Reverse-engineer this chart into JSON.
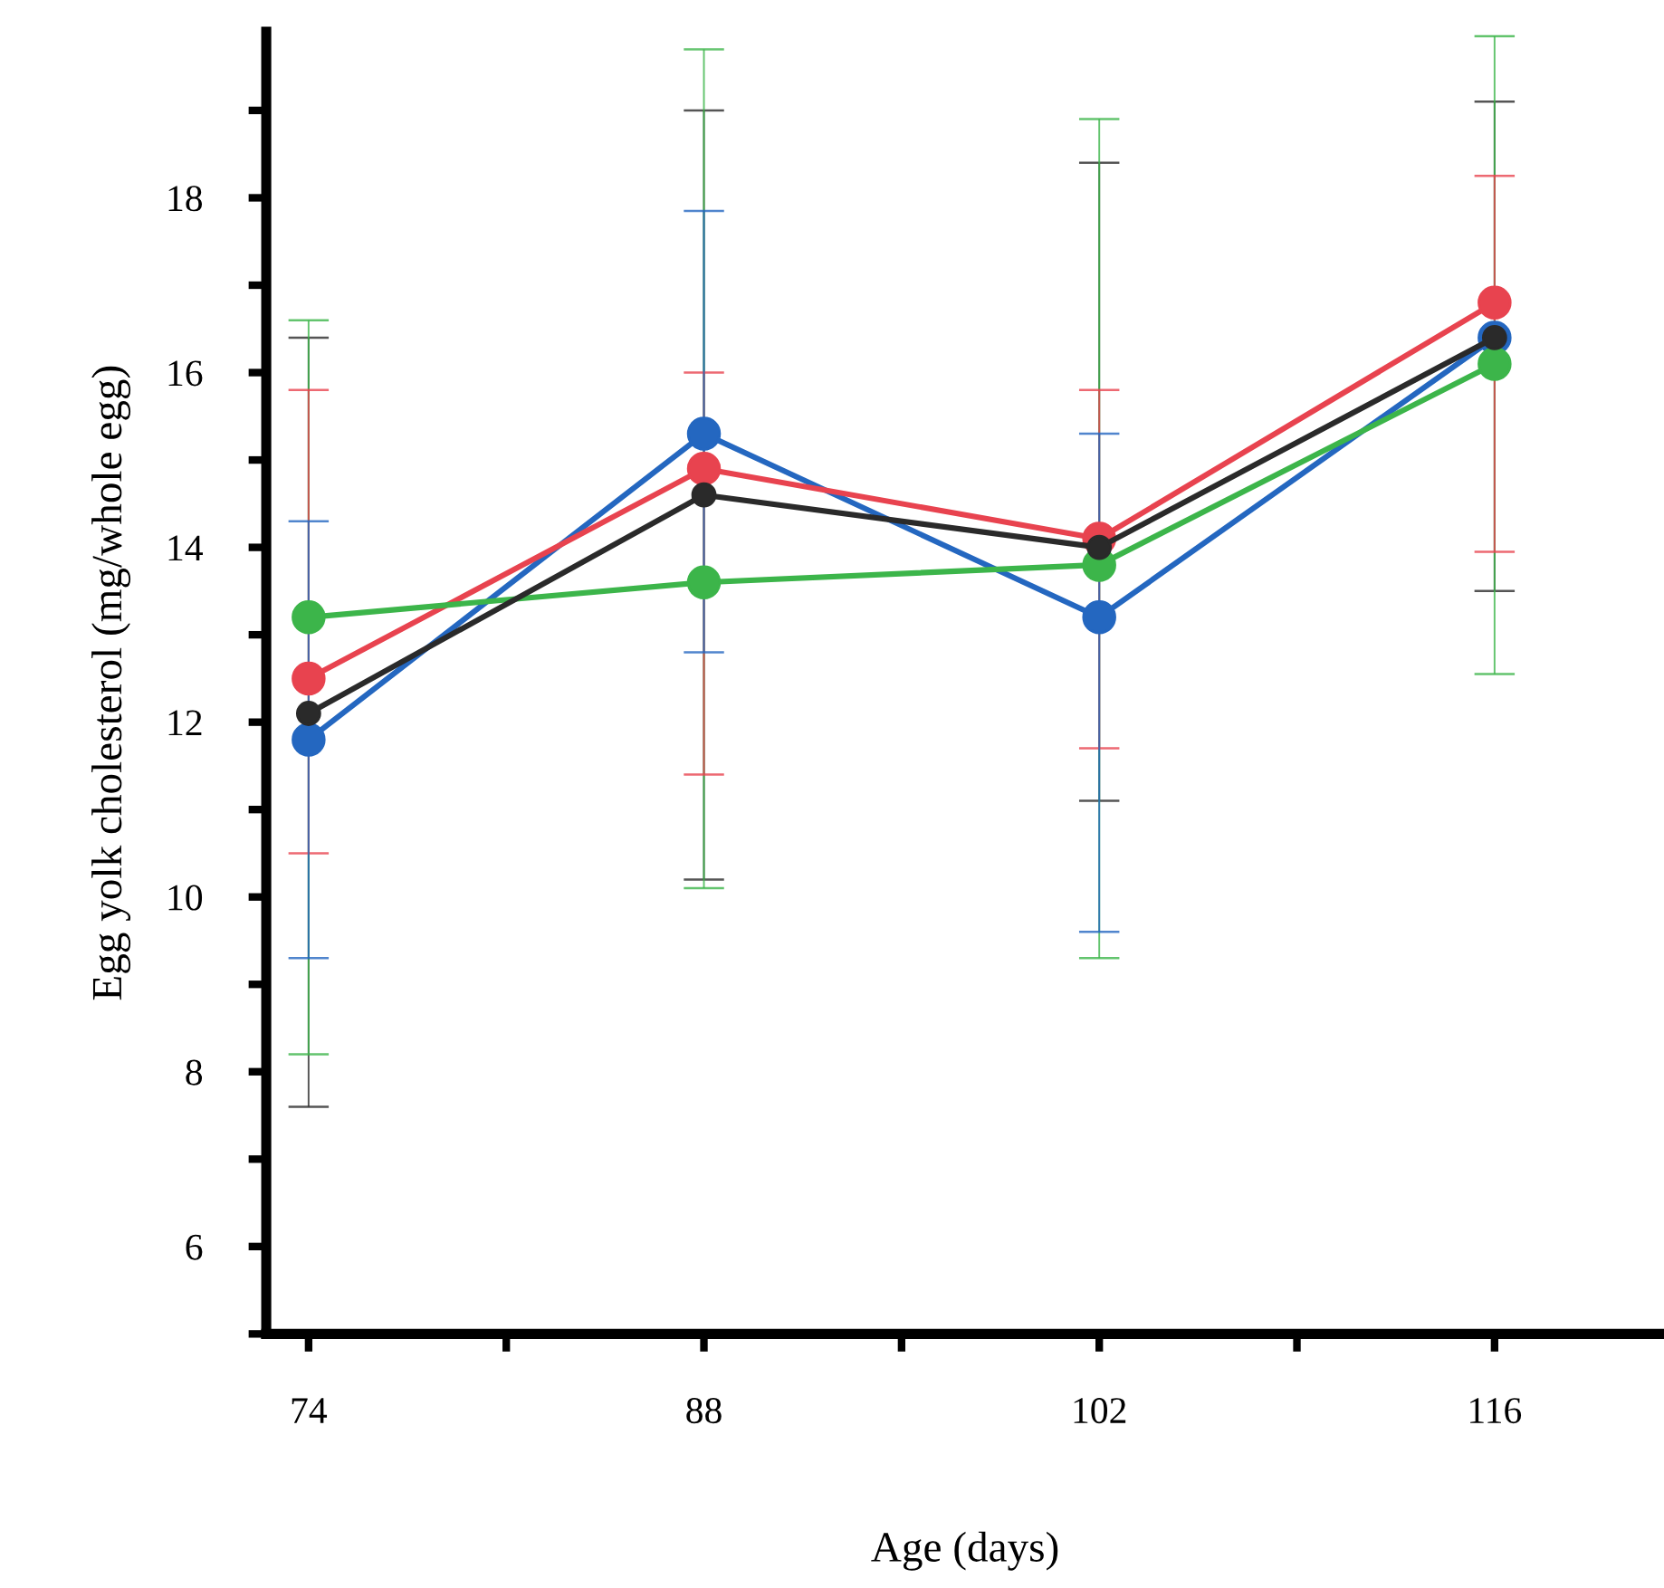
{
  "chart_data": {
    "type": "line",
    "xlabel": "Age (days)",
    "ylabel": "Egg yolk cholesterol (mg/whole egg)",
    "x": [
      74,
      88,
      102,
      116
    ],
    "xlim": [
      72.5,
      122
    ],
    "xticks": [
      74,
      {
        "value": 81,
        "label": null
      },
      88,
      {
        "value": 95,
        "label": null
      },
      102,
      {
        "value": 109,
        "label": null
      },
      116
    ],
    "ylim": [
      5,
      19.9
    ],
    "yticks": [
      {
        "value": 5,
        "label": null
      },
      6,
      {
        "value": 7,
        "label": null
      },
      8,
      {
        "value": 9,
        "label": null
      },
      10,
      {
        "value": 11,
        "label": null
      },
      12,
      {
        "value": 13,
        "label": null
      },
      14,
      {
        "value": 15,
        "label": null
      },
      16,
      {
        "value": 17,
        "label": null
      },
      18,
      {
        "value": 19,
        "label": null
      }
    ],
    "marker": "circle",
    "line_style": "solid",
    "grid": false,
    "legend": false,
    "series": [
      {
        "color": "#2a2a2a",
        "values": [
          12.1,
          14.6,
          14.0,
          16.4
        ],
        "errors": [
          [
            7.6,
            16.4
          ],
          [
            10.2,
            19.0
          ],
          [
            11.1,
            18.4
          ],
          [
            13.5,
            19.1
          ]
        ]
      },
      {
        "color": "#3cb54a",
        "values": [
          13.2,
          13.6,
          13.8,
          16.1
        ],
        "errors": [
          [
            8.2,
            16.6
          ],
          [
            10.1,
            19.7
          ],
          [
            9.3,
            18.9
          ],
          [
            12.55,
            19.85
          ]
        ]
      },
      {
        "color": "#e8434f",
        "values": [
          12.5,
          14.9,
          14.1,
          16.8
        ],
        "errors": [
          [
            10.5,
            15.8
          ],
          [
            11.4,
            16.0
          ],
          [
            11.7,
            15.8
          ],
          [
            13.95,
            18.25
          ]
        ]
      },
      {
        "color": "#2467c0",
        "values": [
          11.8,
          15.3,
          13.2,
          16.4
        ],
        "errors": [
          [
            9.3,
            14.3
          ],
          [
            12.8,
            17.85
          ],
          [
            9.6,
            15.3
          ],
          null
        ]
      }
    ]
  }
}
